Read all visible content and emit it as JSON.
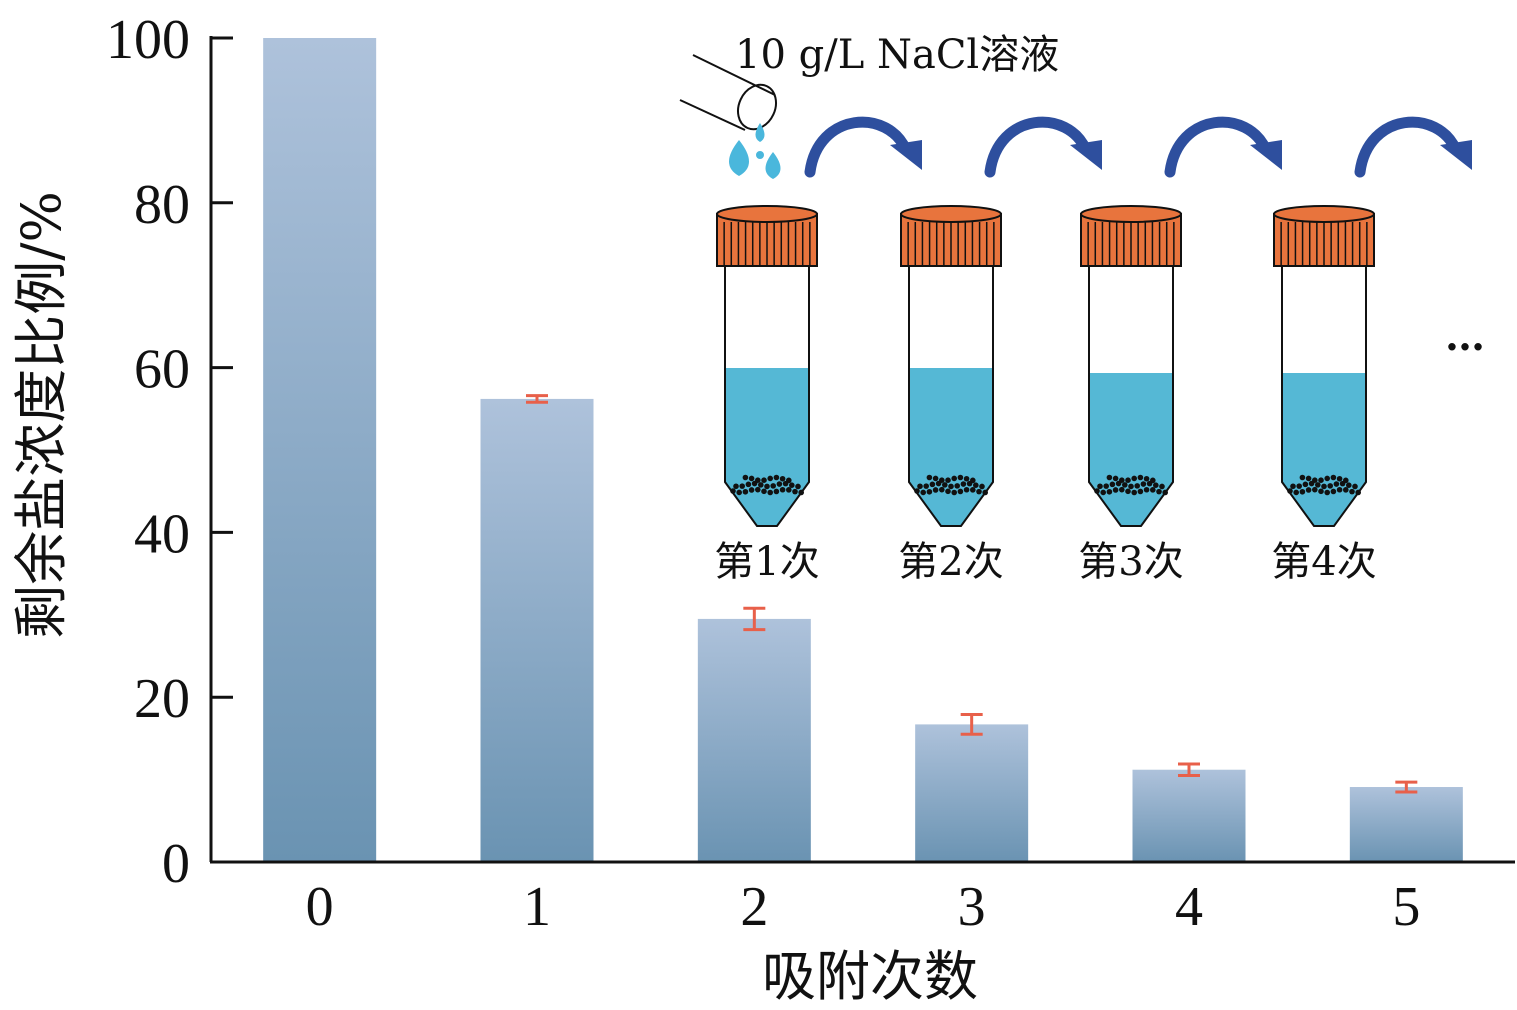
{
  "chart_data": {
    "type": "bar",
    "xlabel": "吸附次数",
    "ylabel": "剩余盐浓度比例/%",
    "ylim": [
      0,
      100
    ],
    "yticks": [
      0,
      20,
      40,
      60,
      80,
      100
    ],
    "categories": [
      "0",
      "1",
      "2",
      "3",
      "4",
      "5"
    ],
    "values": [
      100,
      56.2,
      29.5,
      16.7,
      11.2,
      9.1
    ],
    "error": [
      0,
      0.4,
      1.3,
      1.2,
      0.7,
      0.6
    ],
    "grid": false,
    "legend": "none",
    "colors": {
      "bar_top": "#aec2db",
      "bar_bottom": "#6a93b2",
      "error_bar": "#e8604a",
      "axis": "#111111"
    }
  },
  "inset": {
    "solution_label": "10 g/L NaCl溶液",
    "tube_labels": [
      "第1次",
      "第2次",
      "第3次",
      "第4次"
    ],
    "ellipsis": "…",
    "colors": {
      "cap": "#e8743d",
      "liquid": "#55b8d5",
      "arrow": "#2e4f9e",
      "drop": "#4ab7dc",
      "particle": "#111111"
    }
  }
}
